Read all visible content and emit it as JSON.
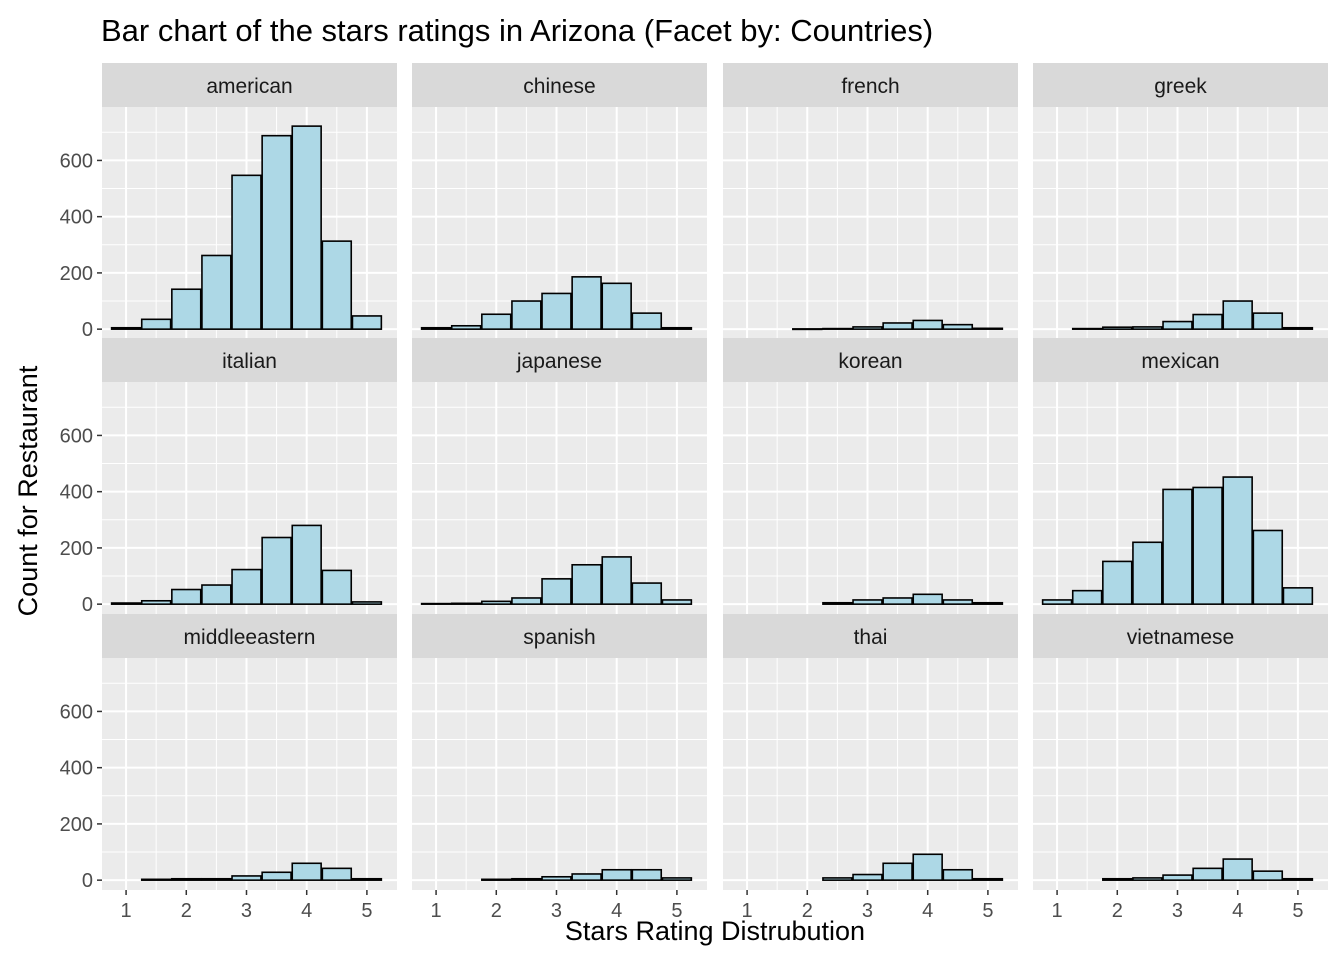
{
  "chart_data": {
    "type": "bar",
    "title": "Bar chart of the stars ratings in Arizona (Facet by: Countries)",
    "xlabel": "Stars Rating Distrubution",
    "ylabel": "Count for Restaurant",
    "x": [
      1,
      1.5,
      2,
      2.5,
      3,
      3.5,
      4,
      4.5,
      5
    ],
    "x_ticks": [
      1,
      2,
      3,
      4,
      5
    ],
    "y_ticks": [
      0,
      200,
      400,
      600
    ],
    "xlim": [
      0.6,
      5.5
    ],
    "ylim": [
      -35,
      790
    ],
    "grid": true,
    "bar_fill": "#add8e6",
    "bar_stroke": "#000000",
    "panel_background": "#ebebeb",
    "strip_background": "#d9d9d9",
    "facets": [
      {
        "name": "american",
        "values": [
          5,
          35,
          142,
          262,
          547,
          688,
          722,
          313,
          47
        ]
      },
      {
        "name": "chinese",
        "values": [
          5,
          12,
          53,
          100,
          127,
          186,
          163,
          57,
          5
        ]
      },
      {
        "name": "french",
        "values": [
          null,
          null,
          1,
          2,
          8,
          22,
          31,
          16,
          3
        ]
      },
      {
        "name": "greek",
        "values": [
          null,
          2,
          7,
          8,
          27,
          52,
          100,
          57,
          5
        ]
      },
      {
        "name": "italian",
        "values": [
          4,
          12,
          52,
          68,
          123,
          237,
          280,
          120,
          8
        ]
      },
      {
        "name": "japanese",
        "values": [
          2,
          3,
          10,
          22,
          90,
          140,
          168,
          75,
          15
        ]
      },
      {
        "name": "korean",
        "values": [
          null,
          null,
          null,
          5,
          15,
          22,
          35,
          15,
          5
        ]
      },
      {
        "name": "mexican",
        "values": [
          15,
          48,
          152,
          220,
          408,
          415,
          452,
          262,
          58
        ]
      },
      {
        "name": "middleeastern",
        "values": [
          null,
          3,
          5,
          5,
          15,
          28,
          60,
          42,
          5
        ]
      },
      {
        "name": "spanish",
        "values": [
          null,
          null,
          3,
          5,
          12,
          22,
          37,
          37,
          8
        ]
      },
      {
        "name": "thai",
        "values": [
          null,
          null,
          null,
          8,
          20,
          60,
          92,
          37,
          5
        ]
      },
      {
        "name": "vietnamese",
        "values": [
          null,
          null,
          5,
          8,
          18,
          42,
          75,
          32,
          5
        ]
      }
    ]
  }
}
